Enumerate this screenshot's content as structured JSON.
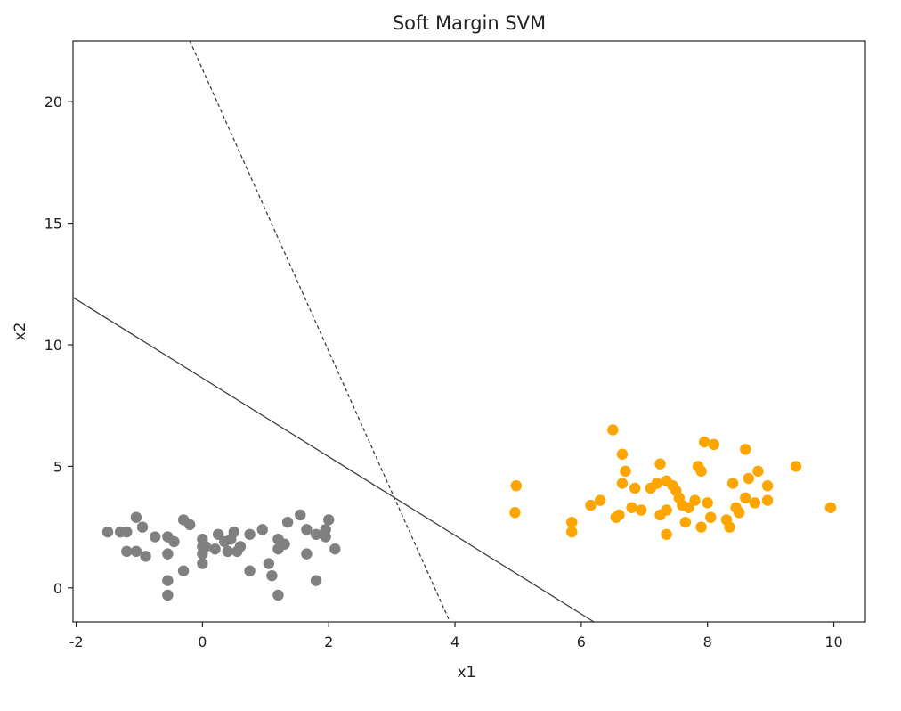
{
  "chart_data": {
    "type": "scatter",
    "title": "Soft Margin SVM",
    "xlabel": "x1",
    "ylabel": "x2",
    "xlim": [
      -2.05,
      10.5
    ],
    "ylim": [
      -1.4,
      22.5
    ],
    "xticks": [
      -2,
      0,
      2,
      4,
      6,
      8,
      10
    ],
    "yticks": [
      0,
      5,
      10,
      15,
      20
    ],
    "xtick_labels": [
      "-2",
      "0",
      "2",
      "4",
      "6",
      "8",
      "10"
    ],
    "ytick_labels": [
      "0",
      "5",
      "10",
      "15",
      "20"
    ],
    "grid": false,
    "lines": [
      {
        "style": "solid",
        "color": "#404040",
        "points": [
          [
            -2.05,
            11.95
          ],
          [
            6.2,
            -1.4
          ]
        ]
      },
      {
        "style": "dashed",
        "color": "#404040",
        "points": [
          [
            -0.2,
            22.5
          ],
          [
            3.92,
            -1.4
          ]
        ]
      }
    ],
    "series": [
      {
        "color": "#808080",
        "points": [
          [
            -1.5,
            2.3
          ],
          [
            -1.3,
            2.3
          ],
          [
            -1.2,
            2.3
          ],
          [
            -1.2,
            1.5
          ],
          [
            -1.05,
            2.9
          ],
          [
            -1.05,
            1.5
          ],
          [
            -0.95,
            2.5
          ],
          [
            -0.9,
            1.3
          ],
          [
            -0.75,
            2.1
          ],
          [
            -0.55,
            2.1
          ],
          [
            -0.55,
            1.4
          ],
          [
            -0.55,
            0.3
          ],
          [
            -0.55,
            -0.3
          ],
          [
            -0.45,
            1.9
          ],
          [
            -0.3,
            2.8
          ],
          [
            -0.3,
            0.7
          ],
          [
            -0.2,
            2.6
          ],
          [
            0.0,
            2.0
          ],
          [
            0.0,
            1.7
          ],
          [
            0.0,
            1.4
          ],
          [
            0.0,
            1.0
          ],
          [
            0.05,
            1.7
          ],
          [
            0.2,
            1.6
          ],
          [
            0.25,
            2.2
          ],
          [
            0.35,
            1.9
          ],
          [
            0.4,
            1.5
          ],
          [
            0.45,
            2.0
          ],
          [
            0.5,
            2.3
          ],
          [
            0.55,
            1.5
          ],
          [
            0.6,
            1.7
          ],
          [
            0.75,
            2.2
          ],
          [
            0.75,
            0.7
          ],
          [
            0.95,
            2.4
          ],
          [
            1.05,
            1.0
          ],
          [
            1.1,
            0.5
          ],
          [
            1.2,
            2.0
          ],
          [
            1.2,
            1.6
          ],
          [
            1.2,
            -0.3
          ],
          [
            1.3,
            1.8
          ],
          [
            1.35,
            2.7
          ],
          [
            1.55,
            3.0
          ],
          [
            1.65,
            2.4
          ],
          [
            1.65,
            1.4
          ],
          [
            1.8,
            2.2
          ],
          [
            1.8,
            0.3
          ],
          [
            1.95,
            2.4
          ],
          [
            1.95,
            2.1
          ],
          [
            2.0,
            2.8
          ],
          [
            2.1,
            1.6
          ]
        ]
      },
      {
        "color": "#ffa500",
        "points": [
          [
            4.95,
            3.1
          ],
          [
            4.97,
            4.2
          ],
          [
            5.85,
            2.7
          ],
          [
            5.85,
            2.3
          ],
          [
            6.15,
            3.4
          ],
          [
            6.3,
            3.6
          ],
          [
            6.5,
            6.5
          ],
          [
            6.55,
            2.9
          ],
          [
            6.6,
            3.0
          ],
          [
            6.65,
            4.3
          ],
          [
            6.65,
            5.5
          ],
          [
            6.7,
            4.8
          ],
          [
            6.8,
            3.3
          ],
          [
            6.85,
            4.1
          ],
          [
            6.95,
            3.2
          ],
          [
            7.1,
            4.1
          ],
          [
            7.2,
            4.3
          ],
          [
            7.25,
            5.1
          ],
          [
            7.25,
            3.0
          ],
          [
            7.35,
            4.4
          ],
          [
            7.35,
            3.2
          ],
          [
            7.35,
            2.2
          ],
          [
            7.45,
            4.2
          ],
          [
            7.5,
            4.0
          ],
          [
            7.55,
            3.7
          ],
          [
            7.6,
            3.4
          ],
          [
            7.65,
            2.7
          ],
          [
            7.7,
            3.3
          ],
          [
            7.8,
            3.6
          ],
          [
            7.85,
            5.0
          ],
          [
            7.9,
            4.8
          ],
          [
            7.9,
            2.5
          ],
          [
            7.95,
            6.0
          ],
          [
            8.0,
            3.5
          ],
          [
            8.05,
            2.9
          ],
          [
            8.1,
            5.9
          ],
          [
            8.3,
            2.8
          ],
          [
            8.35,
            2.5
          ],
          [
            8.4,
            4.3
          ],
          [
            8.45,
            3.3
          ],
          [
            8.5,
            3.1
          ],
          [
            8.6,
            3.7
          ],
          [
            8.6,
            5.7
          ],
          [
            8.65,
            4.5
          ],
          [
            8.75,
            3.5
          ],
          [
            8.8,
            4.8
          ],
          [
            8.95,
            3.6
          ],
          [
            8.95,
            4.2
          ],
          [
            9.4,
            5.0
          ],
          [
            9.95,
            3.3
          ]
        ]
      }
    ]
  }
}
